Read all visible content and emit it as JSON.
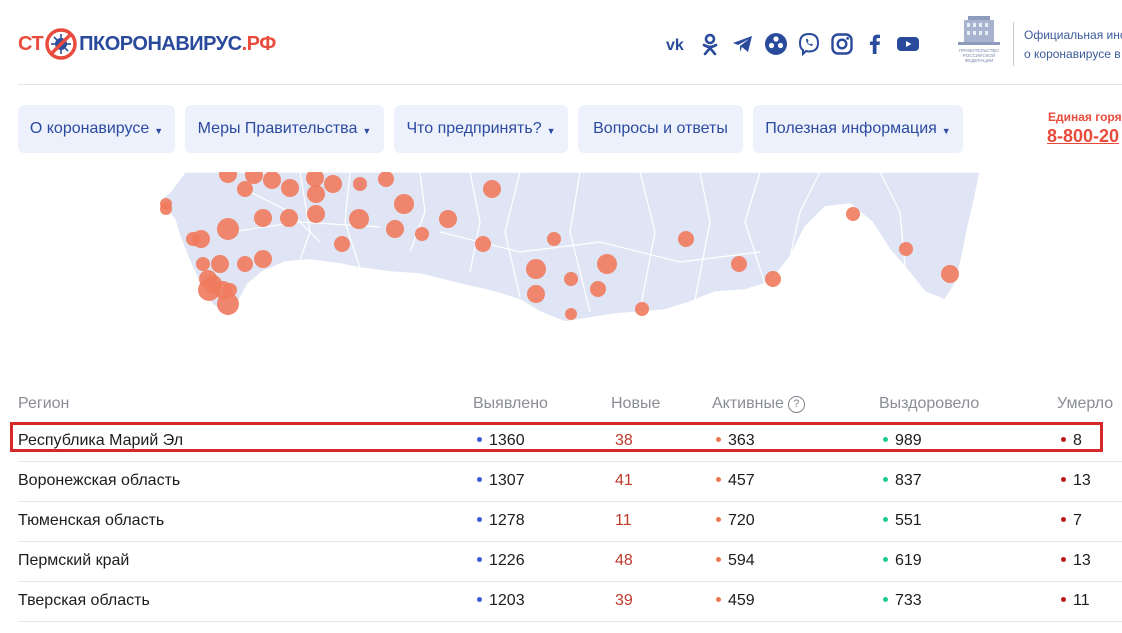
{
  "header": {
    "logo_left": "СТ",
    "logo_right": "ПКОРОНАВИРУС",
    "logo_tld": ".РФ",
    "socials": [
      "vk-icon",
      "odnoklassniki-icon",
      "telegram-icon",
      "viber-icon",
      "viber-icon",
      "instagram-icon",
      "facebook-icon",
      "youtube-icon"
    ],
    "gov_line1": "Официальная инс",
    "gov_line2": "о коронавирусе в"
  },
  "nav": [
    {
      "label": "О коронавирусе",
      "caret": "▼"
    },
    {
      "label": "Меры Правительства",
      "caret": "▼"
    },
    {
      "label": "Что предпринять?",
      "caret": "▼"
    },
    {
      "label": "Вопросы и ответы",
      "caret": ""
    },
    {
      "label": "Полезная информация",
      "caret": "▼"
    }
  ],
  "hotline": {
    "label": "Единая горяч",
    "phone": "8-800-20"
  },
  "colors": {
    "brand_red": "#e94b3c",
    "brand_blue": "#2a4b9b",
    "map_land": "#dfe5f4",
    "map_bubble": "#f07a5d",
    "dot_detected": "#3b5bdb",
    "dot_active": "#f07850",
    "dot_recovered": "#20c997",
    "dot_deaths": "#b91c1c",
    "new_text": "#c0392b",
    "highlight": "#d62828"
  },
  "table": {
    "headers": {
      "region": "Регион",
      "detected": "Выявлено",
      "new": "Новые",
      "active": "Активные",
      "active_help": "?",
      "recovered": "Выздоровело",
      "deaths": "Умерло"
    },
    "rows": [
      {
        "region": "Республика Марий Эл",
        "detected": "1360",
        "new": "38",
        "active": "363",
        "recovered": "989",
        "deaths": "8"
      },
      {
        "region": "Воронежская область",
        "detected": "1307",
        "new": "41",
        "active": "457",
        "recovered": "837",
        "deaths": "13"
      },
      {
        "region": "Тюменская область",
        "detected": "1278",
        "new": "11",
        "active": "720",
        "recovered": "551",
        "deaths": "7"
      },
      {
        "region": "Пермский край",
        "detected": "1226",
        "new": "48",
        "active": "594",
        "recovered": "619",
        "deaths": "13"
      },
      {
        "region": "Тверская область",
        "detected": "1203",
        "new": "39",
        "active": "459",
        "recovered": "733",
        "deaths": "11"
      }
    ]
  }
}
